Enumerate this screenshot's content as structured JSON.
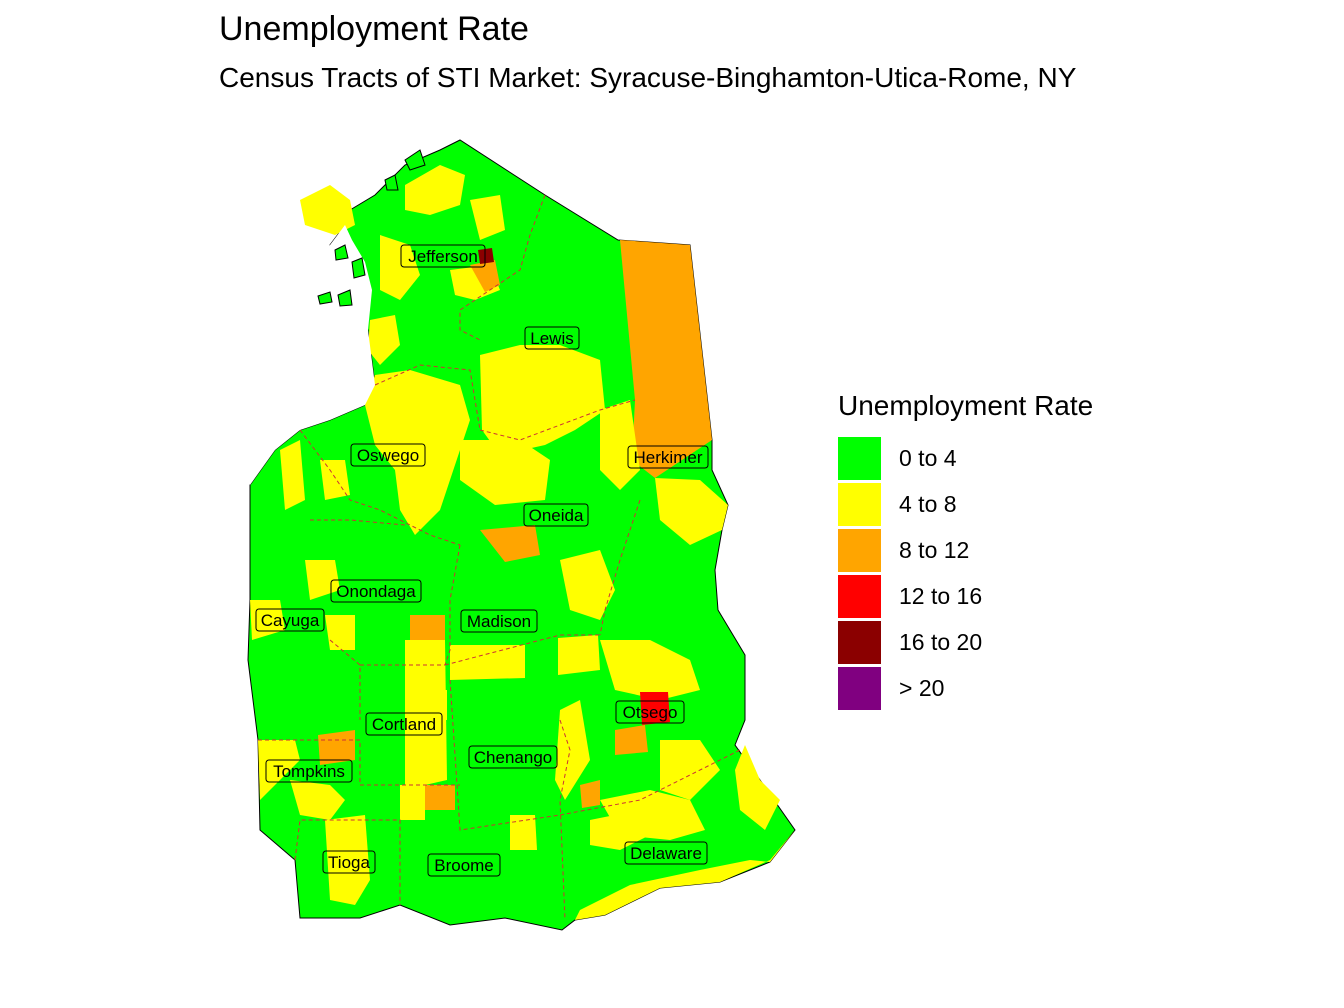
{
  "title": "Unemployment Rate",
  "subtitle": "Census Tracts of STI Market: Syracuse-Binghamton-Utica-Rome, NY",
  "legend": {
    "title": "Unemployment Rate",
    "items": [
      {
        "label": "0 to 4",
        "color": "#00ff00"
      },
      {
        "label": "4 to 8",
        "color": "#ffff00"
      },
      {
        "label": "8 to 12",
        "color": "#ffa500"
      },
      {
        "label": "12 to 16",
        "color": "#ff0000"
      },
      {
        "label": "16 to 20",
        "color": "#8b0000"
      },
      {
        "label": "> 20",
        "color": "#800080"
      }
    ]
  },
  "counties": [
    {
      "name": "Jefferson"
    },
    {
      "name": "Lewis"
    },
    {
      "name": "Oswego"
    },
    {
      "name": "Herkimer"
    },
    {
      "name": "Oneida"
    },
    {
      "name": "Onondaga"
    },
    {
      "name": "Cayuga"
    },
    {
      "name": "Madison"
    },
    {
      "name": "Otsego"
    },
    {
      "name": "Cortland"
    },
    {
      "name": "Chenango"
    },
    {
      "name": "Tompkins"
    },
    {
      "name": "Delaware"
    },
    {
      "name": "Tioga"
    },
    {
      "name": "Broome"
    }
  ]
}
